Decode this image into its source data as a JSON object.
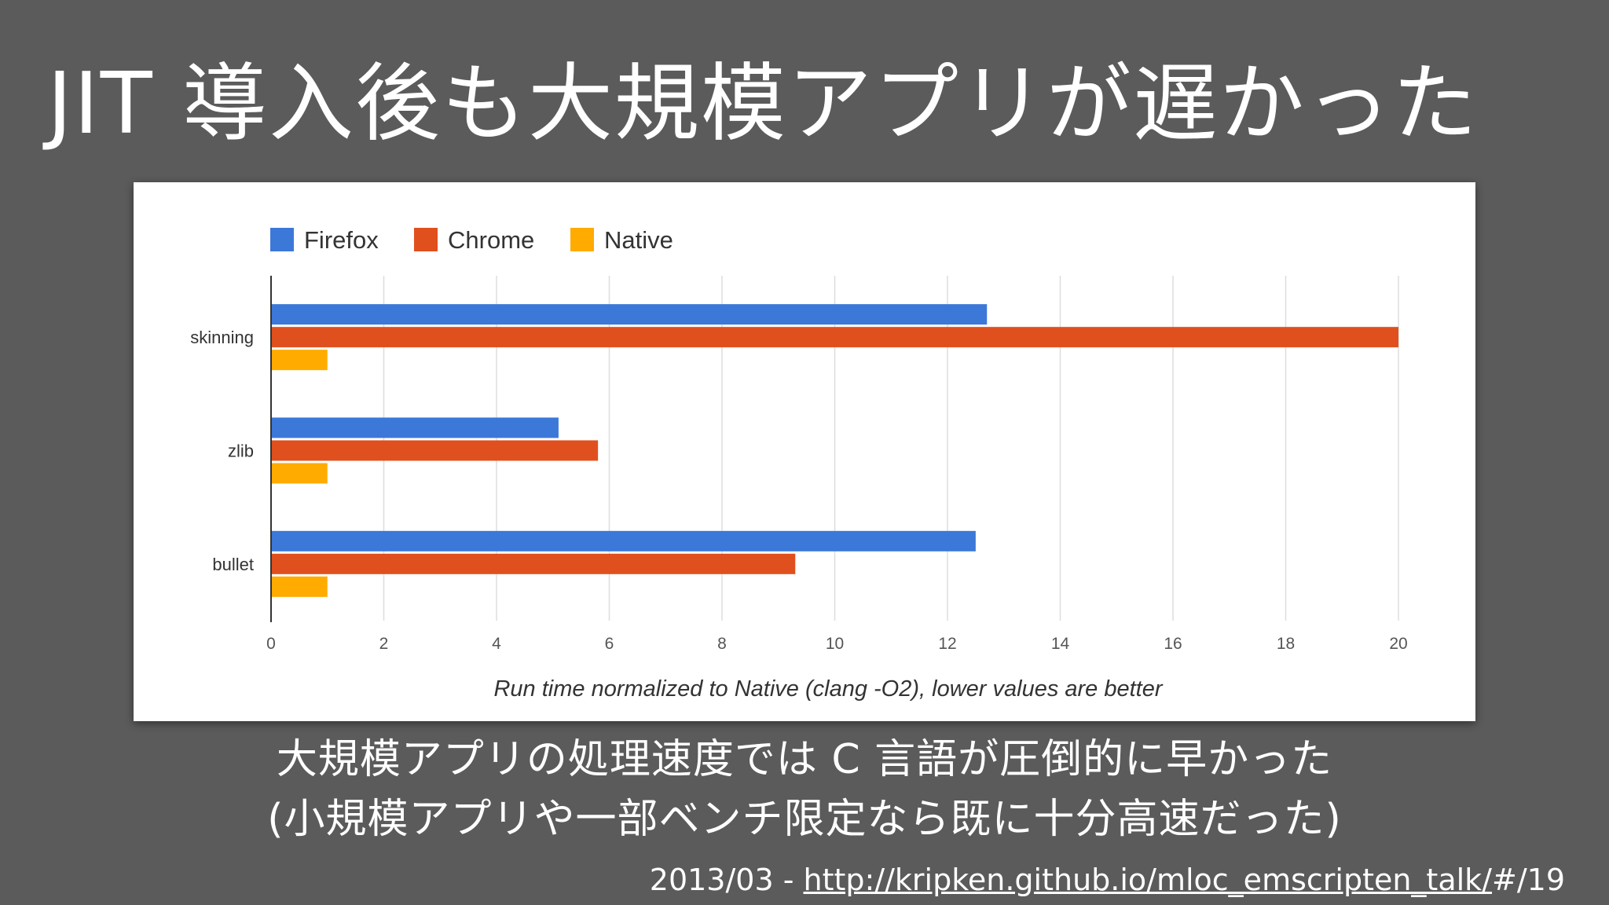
{
  "slide": {
    "title": "JIT 導入後も大規模アプリが遅かった",
    "caption_line1": "大規模アプリの処理速度では C 言語が圧倒的に早かった",
    "caption_line2": "(小規模アプリや一部ベンチ限定なら既に十分高速だった)",
    "source_prefix": "2013/03 - ",
    "source_link": "http://kripken.github.io/mloc_emscripten_talk/",
    "source_suffix": "#/19"
  },
  "chart_data": {
    "type": "bar",
    "orientation": "horizontal",
    "categories": [
      "skinning",
      "zlib",
      "bullet"
    ],
    "series": [
      {
        "name": "Firefox",
        "color": "#3c78d8",
        "values": [
          12.7,
          5.1,
          12.5
        ]
      },
      {
        "name": "Chrome",
        "color": "#e0501e",
        "values": [
          20.0,
          5.8,
          9.3
        ]
      },
      {
        "name": "Native",
        "color": "#ffab00",
        "values": [
          1.0,
          1.0,
          1.0
        ]
      }
    ],
    "xlim": [
      0,
      20
    ],
    "xticks": [
      "0",
      "2",
      "4",
      "6",
      "8",
      "10",
      "12",
      "14",
      "16",
      "18",
      "20"
    ],
    "xlabel": "Run time normalized to Native (clang -O2), lower values are better",
    "ylabel": "",
    "grid": true,
    "legend_position": "top-left"
  }
}
